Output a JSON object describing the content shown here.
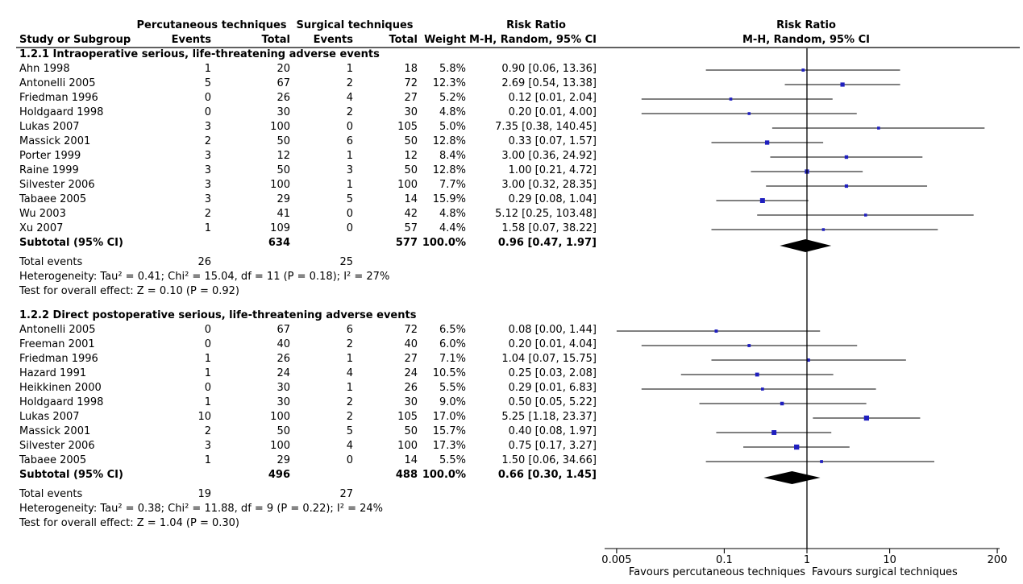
{
  "headers": {
    "group_left": "Percutaneous techniques",
    "group_right": "Surgical techniques",
    "rr_title": "Risk Ratio",
    "study": "Study or Subgroup",
    "events_left": "Events",
    "total_left": "Total",
    "events_right": "Events",
    "total_right": "Total",
    "weight": "Weight",
    "method": "M-H, Random, 95% CI",
    "plot_title": "Risk Ratio",
    "plot_method": "M-H, Random, 95% CI"
  },
  "chart_data": {
    "type": "forest",
    "title": "Risk Ratio",
    "subtitle": "M-H, Random, 95% CI",
    "xscale": "log",
    "xlim": [
      0.005,
      200
    ],
    "xticks": [
      "0.005",
      "0.1",
      "1",
      "10",
      "200"
    ],
    "xlabel_left": "Favours percutaneous techniques",
    "xlabel_right": "Favours surgical techniques",
    "subgroups": [
      {
        "title": "1.2.1 Intraoperative serious, life-threatening adverse events",
        "studies": [
          {
            "study": "Ahn 1998",
            "e1": "1",
            "t1": "20",
            "e2": "1",
            "t2": "18",
            "weight": "5.8%",
            "ci": "0.90 [0.06, 13.36]",
            "rr": 0.9,
            "lo": 0.06,
            "hi": 13.36,
            "w": 5.8
          },
          {
            "study": "Antonelli 2005",
            "e1": "5",
            "t1": "67",
            "e2": "2",
            "t2": "72",
            "weight": "12.3%",
            "ci": "2.69 [0.54, 13.38]",
            "rr": 2.69,
            "lo": 0.54,
            "hi": 13.38,
            "w": 12.3
          },
          {
            "study": "Friedman 1996",
            "e1": "0",
            "t1": "26",
            "e2": "4",
            "t2": "27",
            "weight": "5.2%",
            "ci": "0.12 [0.01, 2.04]",
            "rr": 0.12,
            "lo": 0.01,
            "hi": 2.04,
            "w": 5.2
          },
          {
            "study": "Holdgaard 1998",
            "e1": "0",
            "t1": "30",
            "e2": "2",
            "t2": "30",
            "weight": "4.8%",
            "ci": "0.20 [0.01, 4.00]",
            "rr": 0.2,
            "lo": 0.01,
            "hi": 4.0,
            "w": 4.8
          },
          {
            "study": "Lukas 2007",
            "e1": "3",
            "t1": "100",
            "e2": "0",
            "t2": "105",
            "weight": "5.0%",
            "ci": "7.35 [0.38, 140.45]",
            "rr": 7.35,
            "lo": 0.38,
            "hi": 140.45,
            "w": 5.0
          },
          {
            "study": "Massick 2001",
            "e1": "2",
            "t1": "50",
            "e2": "6",
            "t2": "50",
            "weight": "12.8%",
            "ci": "0.33 [0.07, 1.57]",
            "rr": 0.33,
            "lo": 0.07,
            "hi": 1.57,
            "w": 12.8
          },
          {
            "study": "Porter 1999",
            "e1": "3",
            "t1": "12",
            "e2": "1",
            "t2": "12",
            "weight": "8.4%",
            "ci": "3.00 [0.36, 24.92]",
            "rr": 3.0,
            "lo": 0.36,
            "hi": 24.92,
            "w": 8.4
          },
          {
            "study": "Raine 1999",
            "e1": "3",
            "t1": "50",
            "e2": "3",
            "t2": "50",
            "weight": "12.8%",
            "ci": "1.00 [0.21, 4.72]",
            "rr": 1.0,
            "lo": 0.21,
            "hi": 4.72,
            "w": 12.8
          },
          {
            "study": "Silvester 2006",
            "e1": "3",
            "t1": "100",
            "e2": "1",
            "t2": "100",
            "weight": "7.7%",
            "ci": "3.00 [0.32, 28.35]",
            "rr": 3.0,
            "lo": 0.32,
            "hi": 28.35,
            "w": 7.7
          },
          {
            "study": "Tabaee 2005",
            "e1": "3",
            "t1": "29",
            "e2": "5",
            "t2": "14",
            "weight": "15.9%",
            "ci": "0.29 [0.08, 1.04]",
            "rr": 0.29,
            "lo": 0.08,
            "hi": 1.04,
            "w": 15.9
          },
          {
            "study": "Wu 2003",
            "e1": "2",
            "t1": "41",
            "e2": "0",
            "t2": "42",
            "weight": "4.8%",
            "ci": "5.12 [0.25, 103.48]",
            "rr": 5.12,
            "lo": 0.25,
            "hi": 103.48,
            "w": 4.8
          },
          {
            "study": "Xu 2007",
            "e1": "1",
            "t1": "109",
            "e2": "0",
            "t2": "57",
            "weight": "4.4%",
            "ci": "1.58 [0.07, 38.22]",
            "rr": 1.58,
            "lo": 0.07,
            "hi": 38.22,
            "w": 4.4
          }
        ],
        "subtotal": {
          "label": "Subtotal (95% CI)",
          "t1": "634",
          "t2": "577",
          "weight": "100.0%",
          "ci": "0.96 [0.47, 1.97]",
          "rr": 0.96,
          "lo": 0.47,
          "hi": 1.97
        },
        "total_events": {
          "label": "Total events",
          "e1": "26",
          "e2": "25"
        },
        "heterogeneity": "Heterogeneity: Tau² = 0.41; Chi² = 15.04, df = 11 (P = 0.18); I² = 27%",
        "overall": "Test for overall effect: Z = 0.10 (P = 0.92)"
      },
      {
        "title": "1.2.2 Direct postoperative serious, life-threatening adverse events",
        "studies": [
          {
            "study": "Antonelli 2005",
            "e1": "0",
            "t1": "67",
            "e2": "6",
            "t2": "72",
            "weight": "6.5%",
            "ci": "0.08 [0.00, 1.44]",
            "rr": 0.08,
            "lo": 0.0,
            "hi": 1.44,
            "w": 6.5
          },
          {
            "study": "Freeman 2001",
            "e1": "0",
            "t1": "40",
            "e2": "2",
            "t2": "40",
            "weight": "6.0%",
            "ci": "0.20 [0.01, 4.04]",
            "rr": 0.2,
            "lo": 0.01,
            "hi": 4.04,
            "w": 6.0
          },
          {
            "study": "Friedman 1996",
            "e1": "1",
            "t1": "26",
            "e2": "1",
            "t2": "27",
            "weight": "7.1%",
            "ci": "1.04 [0.07, 15.75]",
            "rr": 1.04,
            "lo": 0.07,
            "hi": 15.75,
            "w": 7.1
          },
          {
            "study": "Hazard 1991",
            "e1": "1",
            "t1": "24",
            "e2": "4",
            "t2": "24",
            "weight": "10.5%",
            "ci": "0.25 [0.03, 2.08]",
            "rr": 0.25,
            "lo": 0.03,
            "hi": 2.08,
            "w": 10.5
          },
          {
            "study": "Heikkinen 2000",
            "e1": "0",
            "t1": "30",
            "e2": "1",
            "t2": "26",
            "weight": "5.5%",
            "ci": "0.29 [0.01, 6.83]",
            "rr": 0.29,
            "lo": 0.01,
            "hi": 6.83,
            "w": 5.5
          },
          {
            "study": "Holdgaard 1998",
            "e1": "1",
            "t1": "30",
            "e2": "2",
            "t2": "30",
            "weight": "9.0%",
            "ci": "0.50 [0.05, 5.22]",
            "rr": 0.5,
            "lo": 0.05,
            "hi": 5.22,
            "w": 9.0
          },
          {
            "study": "Lukas 2007",
            "e1": "10",
            "t1": "100",
            "e2": "2",
            "t2": "105",
            "weight": "17.0%",
            "ci": "5.25 [1.18, 23.37]",
            "rr": 5.25,
            "lo": 1.18,
            "hi": 23.37,
            "w": 17.0
          },
          {
            "study": "Massick 2001",
            "e1": "2",
            "t1": "50",
            "e2": "5",
            "t2": "50",
            "weight": "15.7%",
            "ci": "0.40 [0.08, 1.97]",
            "rr": 0.4,
            "lo": 0.08,
            "hi": 1.97,
            "w": 15.7
          },
          {
            "study": "Silvester 2006",
            "e1": "3",
            "t1": "100",
            "e2": "4",
            "t2": "100",
            "weight": "17.3%",
            "ci": "0.75 [0.17, 3.27]",
            "rr": 0.75,
            "lo": 0.17,
            "hi": 3.27,
            "w": 17.3
          },
          {
            "study": "Tabaee 2005",
            "e1": "1",
            "t1": "29",
            "e2": "0",
            "t2": "14",
            "weight": "5.5%",
            "ci": "1.50 [0.06, 34.66]",
            "rr": 1.5,
            "lo": 0.06,
            "hi": 34.66,
            "w": 5.5
          }
        ],
        "subtotal": {
          "label": "Subtotal (95% CI)",
          "t1": "496",
          "t2": "488",
          "weight": "100.0%",
          "ci": "0.66 [0.30, 1.45]",
          "rr": 0.66,
          "lo": 0.3,
          "hi": 1.45
        },
        "total_events": {
          "label": "Total events",
          "e1": "19",
          "e2": "27"
        },
        "heterogeneity": "Heterogeneity: Tau² = 0.38; Chi² = 11.88, df = 9 (P = 0.22); I² = 24%",
        "overall": "Test for overall effect: Z = 1.04 (P = 0.30)"
      }
    ]
  },
  "colors": {
    "marker": "#1f1fbf",
    "line": "#000000"
  }
}
